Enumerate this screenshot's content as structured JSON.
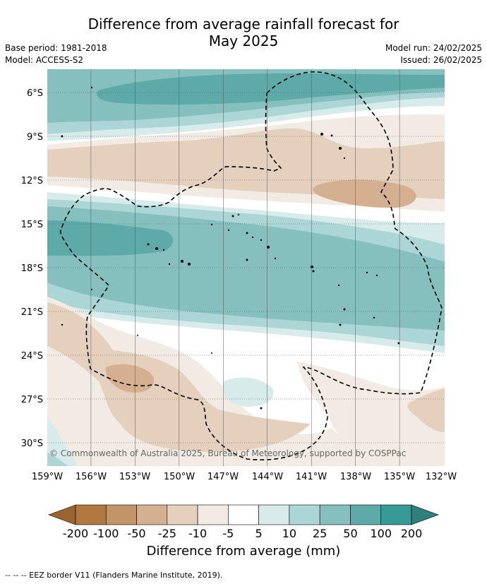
{
  "title_line1": "Difference from average rainfall forecast for",
  "title_line2": "May 2025",
  "base_period": "Base period: 1981-2018",
  "model": "Model: ACCESS-S2",
  "model_run": "Model run: 24/02/2025",
  "issued": "Issued: 26/02/2025",
  "copyright": "© Commonwealth of Australia 2025, Bureau of Meteorology, supported by COSPPac",
  "lat_ticks": [
    "6°S",
    "9°S",
    "12°S",
    "15°S",
    "18°S",
    "21°S",
    "24°S",
    "27°S",
    "30°S"
  ],
  "lon_ticks": [
    "159°W",
    "156°W",
    "153°W",
    "150°W",
    "147°W",
    "144°W",
    "141°W",
    "138°W",
    "135°W",
    "132°W"
  ],
  "colorbar": {
    "ticks": [
      "-200",
      "-100",
      "-50",
      "-25",
      "-10",
      "-5",
      "5",
      "10",
      "25",
      "50",
      "100",
      "200"
    ],
    "colors": [
      "#b07840",
      "#c29468",
      "#d4b090",
      "#e4d0bd",
      "#f2ebe4",
      "#ffffff",
      "#d6ebea",
      "#acd6d5",
      "#85c0be",
      "#5eaaa8",
      "#369a97"
    ],
    "under_color": "#9a6330",
    "over_color": "#2f7f7c",
    "label": "Difference from average (mm)"
  },
  "footer": "--  --  -- EEZ border V11 (Flanders Marine Institute, 2019)."
}
